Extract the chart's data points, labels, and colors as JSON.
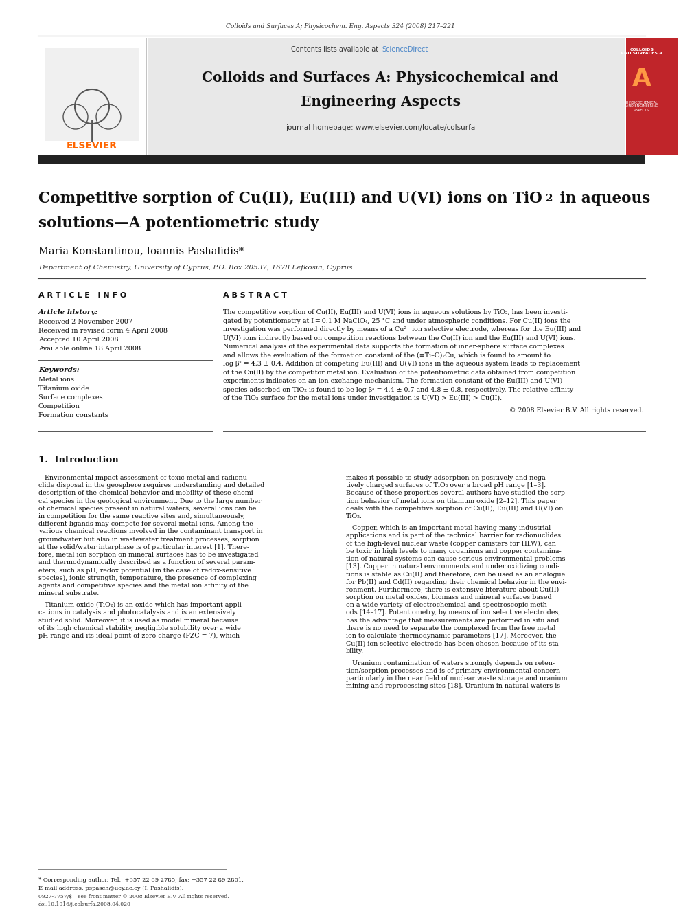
{
  "page_width": 9.92,
  "page_height": 13.23,
  "bg_color": "#ffffff",
  "header_journal_ref": "Colloids and Surfaces A; Physicochem. Eng. Aspects 324 (2008) 217–221",
  "journal_title_line1": "Colloids and Surfaces A: Physicochemical and",
  "journal_title_line2": "Engineering Aspects",
  "journal_homepage": "journal homepage: www.elsevier.com/locate/colsurfa",
  "sciencedirect_text": "Contents lists available at ",
  "sciencedirect_link": "ScienceDirect",
  "sciencedirect_color": "#4a86c8",
  "elsevier_color": "#ff6600",
  "dark_bar_color": "#222222",
  "cover_color": "#c0252a",
  "paper_title_p1": "Competitive sorption of Cu(II), Eu(III) and U(VI) ions on TiO",
  "paper_title_p2": " in aqueous",
  "paper_title_line2": "solutions—A potentiometric study",
  "authors": "Maria Konstantinou, Ioannis Pashalidis*",
  "affiliation": "Department of Chemistry, University of Cyprus, P.O. Box 20537, 1678 Lefkosia, Cyprus",
  "article_info_header": "A R T I C L E   I N F O",
  "article_history_label": "Article history:",
  "received": "Received 2 November 2007",
  "received_revised": "Received in revised form 4 April 2008",
  "accepted": "Accepted 10 April 2008",
  "available": "Available online 18 April 2008",
  "keywords_label": "Keywords:",
  "keywords": [
    "Metal ions",
    "Titanium oxide",
    "Surface complexes",
    "Competition",
    "Formation constants"
  ],
  "abstract_header": "A B S T R A C T",
  "abstract_lines": [
    "The competitive sorption of Cu(II), Eu(III) and U(VI) ions in aqueous solutions by TiO₂, has been investi-",
    "gated by potentiometry at I = 0.1 M NaClO₄, 25 °C and under atmospheric conditions. For Cu(II) ions the",
    "investigation was performed directly by means of a Cu²⁺ ion selective electrode, whereas for the Eu(III) and",
    "U(VI) ions indirectly based on competition reactions between the Cu(II) ion and the Eu(III) and U(VI) ions.",
    "Numerical analysis of the experimental data supports the formation of inner-sphere surface complexes",
    "and allows the evaluation of the formation constant of the (≡Ti–O)₂Cu, which is found to amount to",
    "log βˢ = 4.3 ± 0.4. Addition of competing Eu(III) and U(VI) ions in the aqueous system leads to replacement",
    "of the Cu(II) by the competitor metal ion. Evaluation of the potentiometric data obtained from competition",
    "experiments indicates on an ion exchange mechanism. The formation constant of the Eu(III) and U(VI)",
    "species adsorbed on TiO₂ is found to be log βˢ = 4.4 ± 0.7 and 4.8 ± 0.8, respectively. The relative affinity",
    "of the TiO₂ surface for the metal ions under investigation is U(VI) > Eu(III) > Cu(II)."
  ],
  "copyright": "© 2008 Elsevier B.V. All rights reserved.",
  "intro_header": "1.  Introduction",
  "intro_col1_lines": [
    "   Environmental impact assessment of toxic metal and radionu-",
    "clide disposal in the geosphere requires understanding and detailed",
    "description of the chemical behavior and mobility of these chemi-",
    "cal species in the geological environment. Due to the large number",
    "of chemical species present in natural waters, several ions can be",
    "in competition for the same reactive sites and, simultaneously,",
    "different ligands may compete for several metal ions. Among the",
    "various chemical reactions involved in the contaminant transport in",
    "groundwater but also in wastewater treatment processes, sorption",
    "at the solid/water interphase is of particular interest [1]. There-",
    "fore, metal ion sorption on mineral surfaces has to be investigated",
    "and thermodynamically described as a function of several param-",
    "eters, such as pH, redox potential (in the case of redox-sensitive",
    "species), ionic strength, temperature, the presence of complexing",
    "agents and competitive species and the metal ion affinity of the",
    "mineral substrate.",
    "",
    "   Titanium oxide (TiO₂) is an oxide which has important appli-",
    "cations in catalysis and photocatalysis and is an extensively",
    "studied solid. Moreover, it is used as model mineral because",
    "of its high chemical stability, negligible solubility over a wide",
    "pH range and its ideal point of zero charge (PZC = 7), which"
  ],
  "intro_col2_lines": [
    "makes it possible to study adsorption on positively and nega-",
    "tively charged surfaces of TiO₂ over a broad pH range [1–3].",
    "Because of these properties several authors have studied the sorp-",
    "tion behavior of metal ions on titanium oxide [2–12]. This paper",
    "deals with the competitive sorption of Cu(II), Eu(III) and U(VI) on",
    "TiO₂.",
    "",
    "   Copper, which is an important metal having many industrial",
    "applications and is part of the technical barrier for radionuclides",
    "of the high-level nuclear waste (copper canisters for HLW), can",
    "be toxic in high levels to many organisms and copper contamina-",
    "tion of natural systems can cause serious environmental problems",
    "[13]. Copper in natural environments and under oxidizing condi-",
    "tions is stable as Cu(II) and therefore, can be used as an analogue",
    "for Pb(II) and Cd(II) regarding their chemical behavior in the envi-",
    "ronment. Furthermore, there is extensive literature about Cu(II)",
    "sorption on metal oxides, biomass and mineral surfaces based",
    "on a wide variety of electrochemical and spectroscopic meth-",
    "ods [14–17]. Potentiometry, by means of ion selective electrodes,",
    "has the advantage that measurements are performed in situ and",
    "there is no need to separate the complexed from the free metal",
    "ion to calculate thermodynamic parameters [17]. Moreover, the",
    "Cu(II) ion selective electrode has been chosen because of its sta-",
    "bility.",
    "",
    "   Uranium contamination of waters strongly depends on reten-",
    "tion/sorption processes and is of primary environmental concern",
    "particularly in the near field of nuclear waste storage and uranium",
    "mining and reprocessing sites [18]. Uranium in natural waters is"
  ],
  "footnote_star": "* Corresponding author. Tel.: +357 22 89 2785; fax: +357 22 89 2801.",
  "footnote_email": "E-mail address: pspasch@ucy.ac.cy (I. Pashalidis).",
  "footer_issn": "0927-7757/$ – see front matter © 2008 Elsevier B.V. All rights reserved.",
  "footer_doi": "doi:10.1016/j.colsurfa.2008.04.020"
}
